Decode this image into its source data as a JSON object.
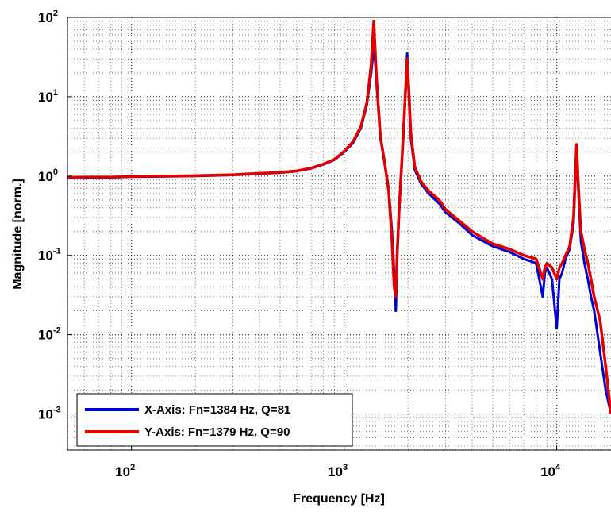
{
  "chart_data": {
    "type": "line",
    "xlabel": "Frequency [Hz]",
    "ylabel": "Magnitude [norm.]",
    "xscale": "log",
    "yscale": "log",
    "xlim": [
      50,
      18000
    ],
    "ylim": [
      0.00035,
      100
    ],
    "grid": true,
    "legend_position": "bottom-left",
    "x_ticks": [
      {
        "base": "10",
        "exp": "2",
        "value": 100
      },
      {
        "base": "10",
        "exp": "3",
        "value": 1000
      },
      {
        "base": "10",
        "exp": "4",
        "value": 10000
      }
    ],
    "y_ticks": [
      {
        "base": "10",
        "exp": "2",
        "value": 100
      },
      {
        "base": "10",
        "exp": "1",
        "value": 10
      },
      {
        "base": "10",
        "exp": "0",
        "value": 1
      },
      {
        "base": "10",
        "exp": "-1",
        "value": 0.1
      },
      {
        "base": "10",
        "exp": "-2",
        "value": 0.01
      },
      {
        "base": "10",
        "exp": "-3",
        "value": 0.001
      }
    ],
    "series": [
      {
        "name": "X-Axis: Fn=1384 Hz, Q=81",
        "color": "#0000cc",
        "x": [
          50,
          60,
          70,
          80,
          90,
          100,
          150,
          200,
          300,
          400,
          500,
          600,
          700,
          800,
          900,
          1000,
          1100,
          1200,
          1280,
          1340,
          1384,
          1420,
          1480,
          1550,
          1620,
          1680,
          1720,
          1750,
          1780,
          1820,
          1870,
          1920,
          1980,
          2010,
          2060,
          2150,
          2300,
          2500,
          2800,
          3000,
          3500,
          4000,
          5000,
          6000,
          7000,
          8000,
          8600,
          8800,
          9000,
          9500,
          10000,
          10300,
          10600,
          11000,
          11500,
          12000,
          12400,
          12700,
          13000,
          13500,
          14000,
          14500,
          15000,
          16000,
          17000,
          18000
        ],
        "y": [
          0.95,
          0.96,
          0.96,
          0.96,
          0.97,
          0.98,
          0.99,
          1.0,
          1.03,
          1.07,
          1.1,
          1.15,
          1.25,
          1.4,
          1.6,
          2.0,
          2.6,
          4.0,
          8.0,
          20,
          45,
          15,
          3.0,
          1.5,
          0.7,
          0.2,
          0.06,
          0.02,
          0.1,
          0.4,
          1.5,
          5.0,
          35,
          12,
          3.0,
          1.2,
          0.8,
          0.6,
          0.45,
          0.35,
          0.25,
          0.18,
          0.13,
          0.11,
          0.09,
          0.08,
          0.03,
          0.06,
          0.07,
          0.05,
          0.012,
          0.05,
          0.06,
          0.09,
          0.12,
          0.25,
          2.0,
          0.5,
          0.15,
          0.08,
          0.05,
          0.03,
          0.02,
          0.006,
          0.002,
          0.001
        ]
      },
      {
        "name": "Y-Axis: Fn=1379 Hz, Q=90",
        "color": "#e00000",
        "x": [
          50,
          60,
          70,
          80,
          90,
          100,
          150,
          200,
          300,
          400,
          500,
          600,
          700,
          800,
          900,
          1000,
          1100,
          1200,
          1280,
          1340,
          1379,
          1420,
          1480,
          1550,
          1620,
          1680,
          1720,
          1750,
          1780,
          1820,
          1870,
          1920,
          1980,
          2010,
          2060,
          2150,
          2300,
          2500,
          2800,
          3000,
          3500,
          4000,
          5000,
          6000,
          7000,
          8000,
          8600,
          8800,
          9000,
          9500,
          10000,
          10300,
          10600,
          11000,
          11500,
          12000,
          12400,
          12700,
          13000,
          13500,
          14000,
          14500,
          15000,
          16000,
          17000,
          18000
        ],
        "y": [
          0.96,
          0.97,
          0.97,
          0.97,
          0.98,
          0.99,
          1.0,
          1.01,
          1.04,
          1.08,
          1.11,
          1.16,
          1.26,
          1.42,
          1.62,
          2.05,
          2.7,
          4.2,
          8.5,
          25,
          90,
          18,
          3.2,
          1.5,
          0.65,
          0.15,
          0.04,
          0.03,
          0.12,
          0.45,
          1.6,
          6.0,
          30,
          14,
          3.5,
          1.3,
          0.85,
          0.65,
          0.5,
          0.38,
          0.27,
          0.2,
          0.14,
          0.12,
          0.1,
          0.09,
          0.05,
          0.07,
          0.08,
          0.07,
          0.05,
          0.07,
          0.08,
          0.1,
          0.13,
          0.3,
          2.5,
          0.6,
          0.2,
          0.12,
          0.08,
          0.05,
          0.03,
          0.015,
          0.004,
          0.001
        ]
      }
    ]
  }
}
